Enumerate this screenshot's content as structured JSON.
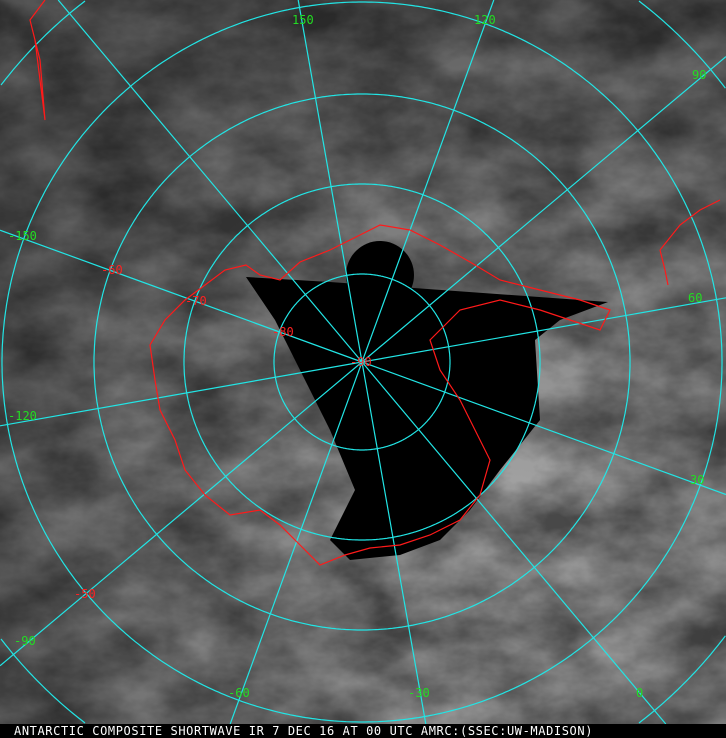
{
  "caption": "ANTARCTIC COMPOSITE SHORTWAVE IR 7 DEC 16 AT 00 UTC AMRC:(SSEC:UW-MADISON)",
  "colors": {
    "grid": "#22e5e5",
    "coastline": "#ff1a1a",
    "longitude_labels": "#22dd22",
    "latitude_labels": "#ff2222",
    "background": "#6e6e6e"
  },
  "longitude_labels": [
    "150",
    "120",
    "90",
    "60",
    "30",
    "0",
    "-30",
    "-60",
    "-90",
    "-120",
    "-150"
  ],
  "latitude_labels": [
    "-50",
    "-60",
    "-70",
    "-80",
    "-90"
  ]
}
